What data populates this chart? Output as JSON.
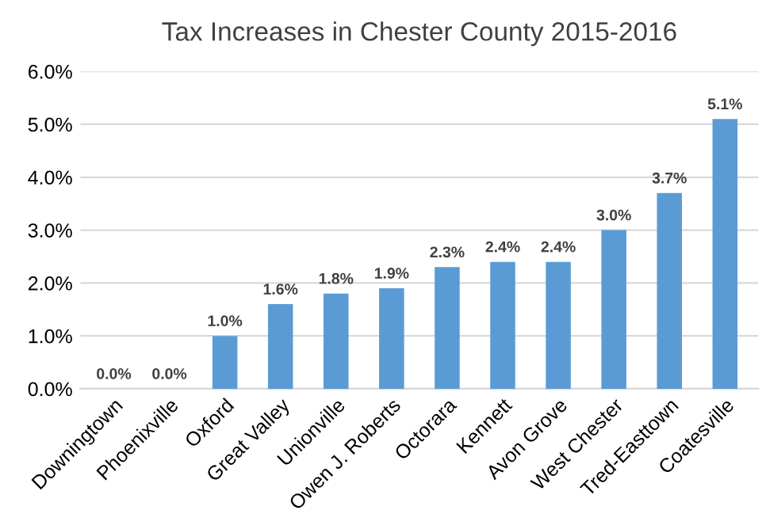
{
  "chart_data": {
    "type": "bar",
    "title": "Tax Increases in Chester County 2015-2016",
    "categories": [
      "Downingtown",
      "Phoenixville",
      "Oxford",
      "Great Valley",
      "Unionville",
      "Owen J. Roberts",
      "Octorara",
      "Kennett",
      "Avon Grove",
      "West Chester",
      "Tred-Easttown",
      "Coatesville"
    ],
    "values": [
      0.0,
      0.0,
      1.0,
      1.6,
      1.8,
      1.9,
      2.3,
      2.4,
      2.4,
      3.0,
      3.7,
      5.1
    ],
    "value_labels": [
      "0.0%",
      "0.0%",
      "1.0%",
      "1.6%",
      "1.8%",
      "1.9%",
      "2.3%",
      "2.4%",
      "2.4%",
      "3.0%",
      "3.7%",
      "5.1%"
    ],
    "color": "#5b9bd5",
    "ylim": [
      0,
      6
    ],
    "yticks": [
      {
        "value": 0,
        "label": "0.0%"
      },
      {
        "value": 1,
        "label": "1.0%"
      },
      {
        "value": 2,
        "label": "2.0%"
      },
      {
        "value": 3,
        "label": "3.0%"
      },
      {
        "value": 4,
        "label": "4.0%"
      },
      {
        "value": 5,
        "label": "5.0%"
      },
      {
        "value": 6,
        "label": "6.0%"
      }
    ],
    "grid": "y"
  }
}
